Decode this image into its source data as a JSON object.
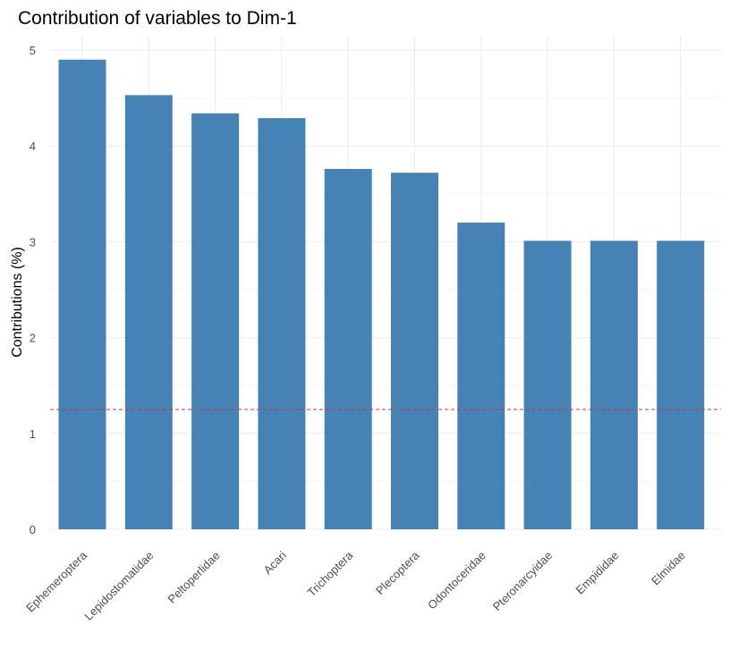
{
  "chart_data": {
    "type": "bar",
    "title": "Contribution of variables to Dim-1",
    "xlabel": "",
    "ylabel": "Contributions (%)",
    "categories": [
      "Ephemeroptera",
      "Lepidostomatidae",
      "Peltoperlidae",
      "Acari",
      "Trichoptera",
      "Plecoptera",
      "Odontoceridae",
      "Pteronarcyidae",
      "Empididae",
      "Elmidae"
    ],
    "values": [
      4.9,
      4.53,
      4.34,
      4.29,
      3.76,
      3.72,
      3.2,
      3.01,
      3.01,
      3.01
    ],
    "ylim": [
      0,
      5.15
    ],
    "yticks": [
      "0",
      "1",
      "2",
      "3",
      "4",
      "5"
    ],
    "reference_line": 1.25,
    "grid": true,
    "colors": {
      "bar": "#4682b4",
      "reference_line": "#d6304a",
      "grid": "#ebebeb",
      "background": "#ffffff"
    }
  }
}
